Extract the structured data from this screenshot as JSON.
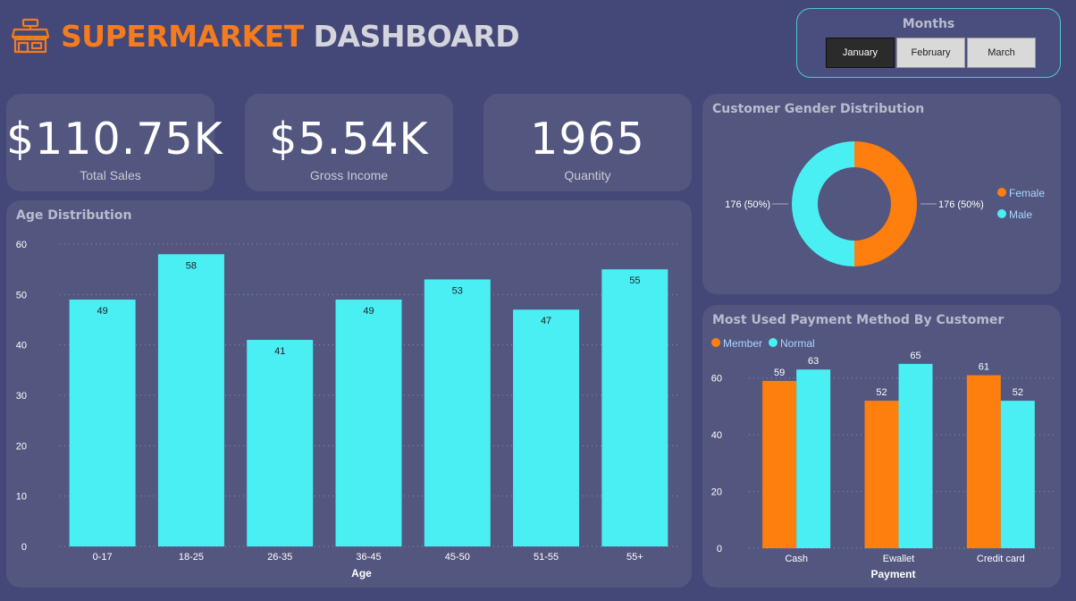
{
  "header": {
    "title_part1": "SUPERMARKET",
    "title_part2": "DASHBOARD",
    "icon": "store-icon"
  },
  "months": {
    "title": "Months",
    "buttons": [
      {
        "label": "January",
        "active": true
      },
      {
        "label": "February",
        "active": false
      },
      {
        "label": "March",
        "active": false
      }
    ]
  },
  "kpis": [
    {
      "value": "$110.75K",
      "label": "Total Sales"
    },
    {
      "value": "$5.54K",
      "label": "Gross Income"
    },
    {
      "value": "1965",
      "label": "Quantity"
    }
  ],
  "panels": {
    "age_title": "Age Distribution",
    "gender_title": "Customer Gender Distribution",
    "payment_title": "Most Used Payment Method By Customer"
  },
  "colors": {
    "cyan": "#4aeff4",
    "orange": "#ff7f0e",
    "background": "#444878",
    "card": "#53567f"
  },
  "chart_data": [
    {
      "type": "bar",
      "title": "Age Distribution",
      "xlabel": "Age",
      "ylabel": "",
      "categories": [
        "0-17",
        "18-25",
        "26-35",
        "36-45",
        "45-50",
        "51-55",
        "55+"
      ],
      "values": [
        49,
        58,
        41,
        49,
        53,
        47,
        55
      ],
      "yticks": [
        0,
        10,
        20,
        30,
        40,
        50,
        60
      ],
      "ylim": [
        0,
        60
      ],
      "grid": true
    },
    {
      "type": "pie",
      "title": "Customer Gender Distribution",
      "labels": [
        "Female",
        "Male"
      ],
      "values": [
        176,
        176
      ],
      "data_labels": [
        "176 (50%)",
        "176 (50%)"
      ],
      "legend": "right"
    },
    {
      "type": "bar",
      "title": "Most Used Payment Method By Customer",
      "xlabel": "Payment",
      "ylabel": "",
      "categories": [
        "Cash",
        "Ewallet",
        "Credit card"
      ],
      "series": [
        {
          "name": "Member",
          "values": [
            59,
            52,
            61
          ]
        },
        {
          "name": "Normal",
          "values": [
            63,
            65,
            52
          ]
        }
      ],
      "yticks": [
        0,
        20,
        40,
        60
      ],
      "ylim": [
        0,
        70
      ],
      "legend": "top-left",
      "grid": true
    }
  ]
}
